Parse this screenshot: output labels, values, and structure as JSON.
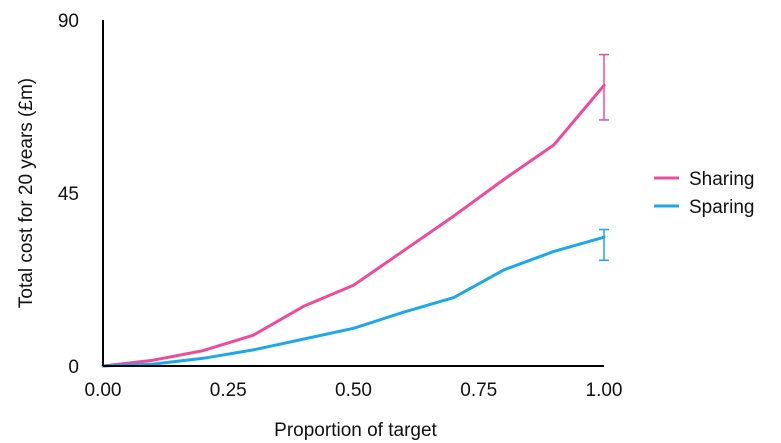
{
  "chart_data": {
    "type": "line",
    "title": "",
    "xlabel": "Proportion of target",
    "ylabel": "Total cost for 20 years (£m)",
    "xlim": [
      0,
      1
    ],
    "ylim": [
      0,
      90
    ],
    "x_ticks": [
      "0.00",
      "0.25",
      "0.50",
      "0.75",
      "1.00"
    ],
    "x_tick_values": [
      0,
      0.25,
      0.5,
      0.75,
      1.0
    ],
    "y_ticks": [
      "0",
      "45",
      "90"
    ],
    "y_tick_values": [
      0,
      45,
      90
    ],
    "grid": false,
    "legend_position": "right",
    "x": [
      0,
      0.1,
      0.2,
      0.3,
      0.4,
      0.5,
      0.6,
      0.7,
      0.8,
      0.9,
      1.0
    ],
    "series": [
      {
        "name": "Sharing",
        "color": "#ee4c9a",
        "values": [
          0,
          1.5,
          4,
          8,
          15.5,
          21,
          30,
          39,
          48.5,
          57.5,
          73
        ],
        "error_bar": {
          "x": 1.0,
          "low": 64,
          "high": 81
        }
      },
      {
        "name": "Sparing",
        "color": "#1ea7ea",
        "values": [
          0,
          0.5,
          2,
          4.2,
          7,
          9.8,
          14,
          17.8,
          25,
          29.8,
          33.5
        ],
        "error_bar": {
          "x": 1.0,
          "low": 27.5,
          "high": 35.5
        }
      }
    ]
  }
}
